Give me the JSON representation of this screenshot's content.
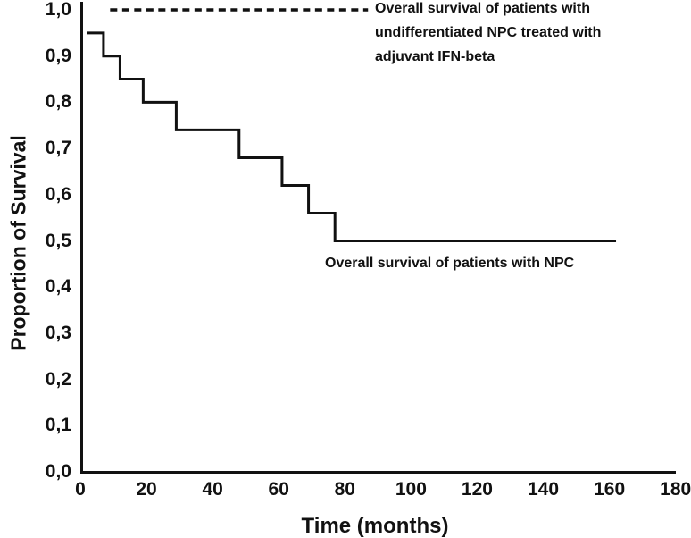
{
  "colors": {
    "line": "#111111",
    "background": "#ffffff"
  },
  "chart_data": {
    "type": "line",
    "subtype": "kaplan-meier-step",
    "title": "",
    "xlabel": "Time (months)",
    "ylabel": "Proportion of Survival",
    "xlim": [
      0,
      180
    ],
    "ylim": [
      0.0,
      1.0
    ],
    "grid": false,
    "x_ticks": [
      {
        "v": 0,
        "label": "0"
      },
      {
        "v": 20,
        "label": "20"
      },
      {
        "v": 40,
        "label": "40"
      },
      {
        "v": 60,
        "label": "60"
      },
      {
        "v": 80,
        "label": "80"
      },
      {
        "v": 100,
        "label": "100"
      },
      {
        "v": 120,
        "label": "120"
      },
      {
        "v": 140,
        "label": "140"
      },
      {
        "v": 160,
        "label": "160"
      },
      {
        "v": 180,
        "label": "180"
      }
    ],
    "y_ticks": [
      {
        "v": 0.0,
        "label": "0,0"
      },
      {
        "v": 0.1,
        "label": "0,1"
      },
      {
        "v": 0.2,
        "label": "0,2"
      },
      {
        "v": 0.3,
        "label": "0,3"
      },
      {
        "v": 0.4,
        "label": "0,4"
      },
      {
        "v": 0.5,
        "label": "0,5"
      },
      {
        "v": 0.6,
        "label": "0,6"
      },
      {
        "v": 0.7,
        "label": "0,7"
      },
      {
        "v": 0.8,
        "label": "0,8"
      },
      {
        "v": 0.9,
        "label": "0,9"
      },
      {
        "v": 1.0,
        "label": "1,0"
      }
    ],
    "series": [
      {
        "name": "Overall survival of patients with undifferentiated NPC treated with adjuvant IFN-beta",
        "style": "dashed",
        "color": "#111111",
        "points": [
          [
            9,
            1.0
          ],
          [
            87,
            1.0
          ]
        ],
        "label_lines": [
          "Overall survival of patients with",
          "undifferentiated NPC treated with",
          "adjuvant IFN-beta"
        ]
      },
      {
        "name": "Overall survival of patients with NPC",
        "style": "step",
        "color": "#111111",
        "points": [
          [
            2,
            0.95
          ],
          [
            7,
            0.9
          ],
          [
            12,
            0.85
          ],
          [
            19,
            0.8
          ],
          [
            29,
            0.74
          ],
          [
            48,
            0.68
          ],
          [
            61,
            0.62
          ],
          [
            69,
            0.56
          ],
          [
            77,
            0.5
          ],
          [
            162,
            0.5
          ]
        ]
      }
    ]
  }
}
